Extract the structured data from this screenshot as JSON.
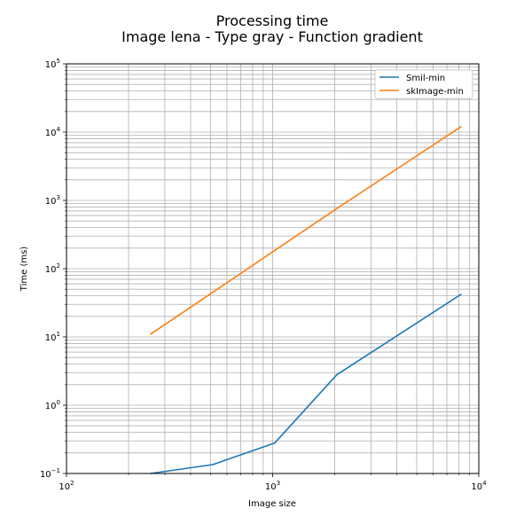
{
  "chart_data": {
    "type": "line",
    "title": "Processing time",
    "subtitle": "Image lena - Type gray - Function gradient",
    "xlabel": "Image size",
    "ylabel": "Time (ms)",
    "xscale": "log",
    "yscale": "log",
    "xlim": [
      100,
      10000
    ],
    "ylim": [
      0.1,
      100000
    ],
    "x_ticks": [
      {
        "value": 100,
        "base": "10",
        "exp": "2"
      },
      {
        "value": 1000,
        "base": "10",
        "exp": "3"
      },
      {
        "value": 10000,
        "base": "10",
        "exp": "4"
      }
    ],
    "y_ticks": [
      {
        "value": 0.1,
        "base": "10",
        "exp": "−1"
      },
      {
        "value": 1,
        "base": "10",
        "exp": "0"
      },
      {
        "value": 10,
        "base": "10",
        "exp": "1"
      },
      {
        "value": 100,
        "base": "10",
        "exp": "2"
      },
      {
        "value": 1000,
        "base": "10",
        "exp": "3"
      },
      {
        "value": 10000,
        "base": "10",
        "exp": "4"
      },
      {
        "value": 100000,
        "base": "10",
        "exp": "5"
      }
    ],
    "grid": true,
    "legend_position": "top-right",
    "series": [
      {
        "name": "Smil-min",
        "color": "#1f77b4",
        "x": [
          256,
          512,
          1024,
          2048,
          8192
        ],
        "y": [
          0.1,
          0.135,
          0.28,
          2.8,
          42
        ]
      },
      {
        "name": "skImage-min",
        "color": "#ff7f0e",
        "x": [
          256,
          512,
          1024,
          2048,
          8192
        ],
        "y": [
          11,
          45,
          185,
          760,
          12000
        ]
      }
    ]
  }
}
